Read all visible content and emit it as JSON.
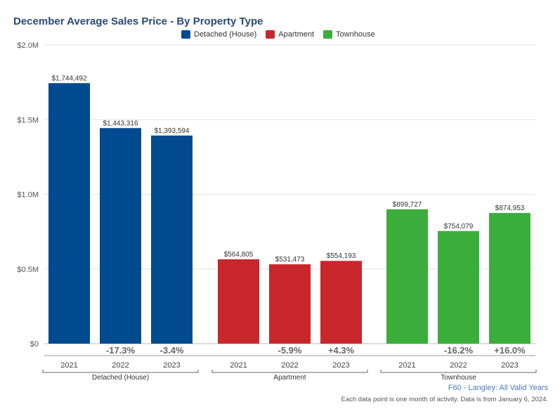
{
  "chart_data": {
    "type": "bar",
    "title": "December Average Sales Price - By Property Type",
    "ylim": [
      0,
      2000000
    ],
    "yticks": [
      {
        "value": 0,
        "label": "$0"
      },
      {
        "value": 500000,
        "label": "$0.5M"
      },
      {
        "value": 1000000,
        "label": "$1.0M"
      },
      {
        "value": 1500000,
        "label": "$1.5M"
      },
      {
        "value": 2000000,
        "label": "$2.0M"
      }
    ],
    "grid": true,
    "legend_position": "top-center",
    "groups": [
      {
        "name": "Detached (House)",
        "color": "#004a8f",
        "bars": [
          {
            "year": "2021",
            "value": 1744492,
            "label": "$1,744,492",
            "change": ""
          },
          {
            "year": "2022",
            "value": 1443316,
            "label": "$1,443,316",
            "change": "-17.3%"
          },
          {
            "year": "2023",
            "value": 1393594,
            "label": "$1,393,594",
            "change": "-3.4%"
          }
        ]
      },
      {
        "name": "Apartment",
        "color": "#c9272b",
        "bars": [
          {
            "year": "2021",
            "value": 564805,
            "label": "$564,805",
            "change": ""
          },
          {
            "year": "2022",
            "value": 531473,
            "label": "$531,473",
            "change": "-5.9%"
          },
          {
            "year": "2023",
            "value": 554193,
            "label": "$554,193",
            "change": "+4.3%"
          }
        ]
      },
      {
        "name": "Townhouse",
        "color": "#3aad3a",
        "bars": [
          {
            "year": "2021",
            "value": 899727,
            "label": "$899,727",
            "change": ""
          },
          {
            "year": "2022",
            "value": 754079,
            "label": "$754,079",
            "change": "-16.2%"
          },
          {
            "year": "2023",
            "value": 874953,
            "label": "$874,953",
            "change": "+16.0%"
          }
        ]
      }
    ]
  },
  "legend": [
    {
      "label": "Detached (House)",
      "color": "#004a8f"
    },
    {
      "label": "Apartment",
      "color": "#c9272b"
    },
    {
      "label": "Townhouse",
      "color": "#3aad3a"
    }
  ],
  "source_label": "F60 - Langley: All Valid Years",
  "footnote": "Each data point is one month of activity. Data is from January 6, 2024."
}
